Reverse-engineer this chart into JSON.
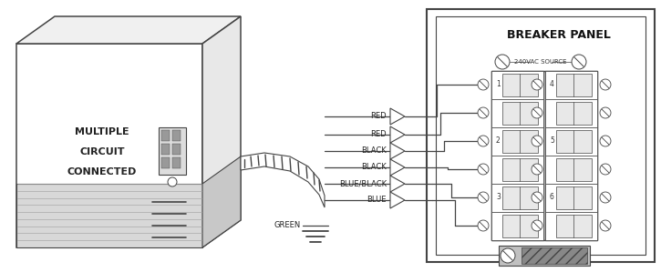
{
  "bg_color": "#ffffff",
  "lc": "#444444",
  "title": "BREAKER PANEL",
  "source_label": "240VAC SOURCE",
  "device_label": [
    "MULTIPLE",
    "CIRCUIT",
    "CONNECTED"
  ],
  "wire_labels": [
    "RED",
    "RED",
    "BLACK",
    "BLACK",
    "BLUE/BLACK",
    "BLUE"
  ],
  "ground_label": "GREEN",
  "breaker_numbers_left": [
    "1",
    "2",
    "3"
  ],
  "breaker_numbers_right": [
    "4",
    "5",
    "6"
  ],
  "figsize": [
    7.25,
    2.99
  ],
  "dpi": 100
}
